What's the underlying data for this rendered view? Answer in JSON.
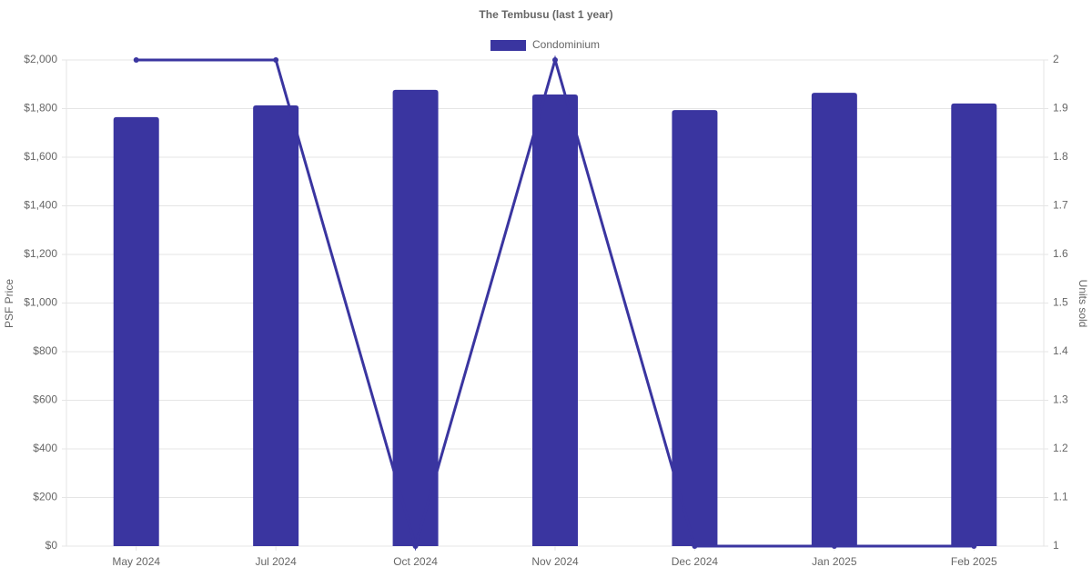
{
  "chart_data": {
    "type": "bar",
    "title": "The Tembusu (last 1 year)",
    "y_label": "PSF Price",
    "y2_label": "Units sold",
    "categories": [
      "May 2024",
      "Jul 2024",
      "Oct 2024",
      "Nov 2024",
      "Dec 2024",
      "Jan 2025",
      "Feb 2025"
    ],
    "series": [
      {
        "name": "Condominium",
        "type": "bar",
        "color": "#3a35a0",
        "values": [
          1765,
          1813,
          1877,
          1858,
          1794,
          1865,
          1821
        ]
      },
      {
        "type": "line",
        "axis": "y2",
        "color": "#3a35a0",
        "values": [
          2,
          2,
          1,
          2,
          1,
          1,
          1
        ]
      }
    ],
    "ylim": [
      0,
      2000
    ],
    "yticks": [
      {
        "value": 0,
        "label": "$0"
      },
      {
        "value": 200,
        "label": "$200"
      },
      {
        "value": 400,
        "label": "$400"
      },
      {
        "value": 600,
        "label": "$600"
      },
      {
        "value": 800,
        "label": "$800"
      },
      {
        "value": 1000,
        "label": "$1,000"
      },
      {
        "value": 1200,
        "label": "$1,200"
      },
      {
        "value": 1400,
        "label": "$1,400"
      },
      {
        "value": 1600,
        "label": "$1,600"
      },
      {
        "value": 1800,
        "label": "$1,800"
      },
      {
        "value": 2000,
        "label": "$2,000"
      }
    ],
    "y2lim": [
      1,
      2
    ],
    "y2ticks": [
      1,
      1.1,
      1.2,
      1.3,
      1.4,
      1.5,
      1.6,
      1.7,
      1.8,
      1.9,
      2
    ],
    "grid": true,
    "legend": "top"
  }
}
